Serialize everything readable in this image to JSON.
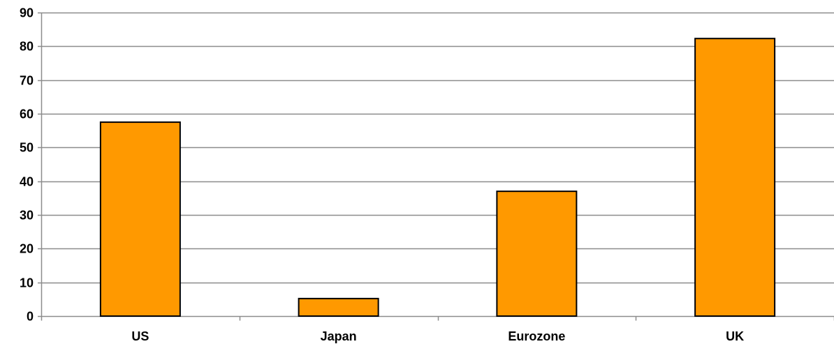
{
  "chart_data": {
    "type": "bar",
    "title": "",
    "xlabel": "",
    "ylabel": "",
    "categories": [
      "US",
      "Japan",
      "Eurozone",
      "UK"
    ],
    "values": [
      57.5,
      5.2,
      37.0,
      82.3
    ],
    "ylim": [
      0,
      90
    ],
    "yticks": [
      0,
      10,
      20,
      30,
      40,
      50,
      60,
      70,
      80,
      90
    ],
    "grid": "horizontal",
    "legend": "none",
    "colors": {
      "bar_fill": "#FF9900",
      "bar_stroke": "#000000",
      "grid": "#8C8C8C",
      "axis": "#8C8C8C",
      "text": "#000000"
    }
  }
}
